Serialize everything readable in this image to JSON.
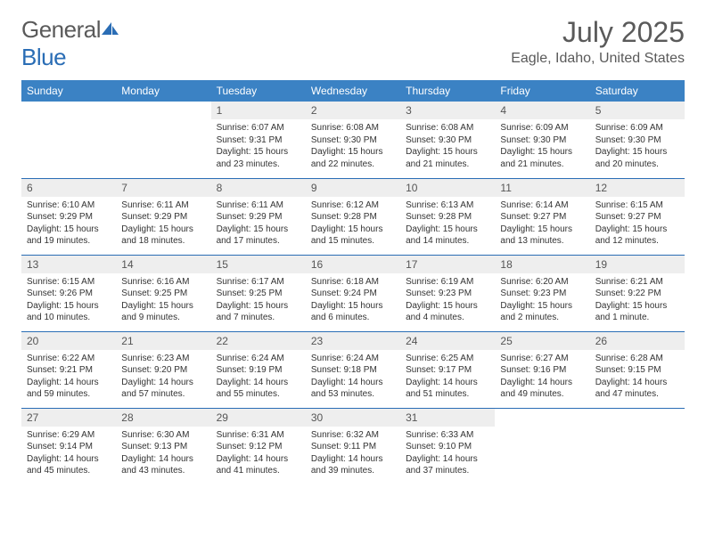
{
  "brand": {
    "word1": "General",
    "word2": "Blue"
  },
  "icon_color": "#2a6db5",
  "title": "July 2025",
  "location": "Eagle, Idaho, United States",
  "header_bg": "#3b82c4",
  "header_fg": "#ffffff",
  "daynum_bg": "#eeeeee",
  "divider_color": "#2a6db5",
  "text_color": "#333333",
  "columns": [
    "Sunday",
    "Monday",
    "Tuesday",
    "Wednesday",
    "Thursday",
    "Friday",
    "Saturday"
  ],
  "weeks": [
    [
      null,
      null,
      {
        "n": "1",
        "sr": "6:07 AM",
        "ss": "9:31 PM",
        "dl": "15 hours and 23 minutes."
      },
      {
        "n": "2",
        "sr": "6:08 AM",
        "ss": "9:30 PM",
        "dl": "15 hours and 22 minutes."
      },
      {
        "n": "3",
        "sr": "6:08 AM",
        "ss": "9:30 PM",
        "dl": "15 hours and 21 minutes."
      },
      {
        "n": "4",
        "sr": "6:09 AM",
        "ss": "9:30 PM",
        "dl": "15 hours and 21 minutes."
      },
      {
        "n": "5",
        "sr": "6:09 AM",
        "ss": "9:30 PM",
        "dl": "15 hours and 20 minutes."
      }
    ],
    [
      {
        "n": "6",
        "sr": "6:10 AM",
        "ss": "9:29 PM",
        "dl": "15 hours and 19 minutes."
      },
      {
        "n": "7",
        "sr": "6:11 AM",
        "ss": "9:29 PM",
        "dl": "15 hours and 18 minutes."
      },
      {
        "n": "8",
        "sr": "6:11 AM",
        "ss": "9:29 PM",
        "dl": "15 hours and 17 minutes."
      },
      {
        "n": "9",
        "sr": "6:12 AM",
        "ss": "9:28 PM",
        "dl": "15 hours and 15 minutes."
      },
      {
        "n": "10",
        "sr": "6:13 AM",
        "ss": "9:28 PM",
        "dl": "15 hours and 14 minutes."
      },
      {
        "n": "11",
        "sr": "6:14 AM",
        "ss": "9:27 PM",
        "dl": "15 hours and 13 minutes."
      },
      {
        "n": "12",
        "sr": "6:15 AM",
        "ss": "9:27 PM",
        "dl": "15 hours and 12 minutes."
      }
    ],
    [
      {
        "n": "13",
        "sr": "6:15 AM",
        "ss": "9:26 PM",
        "dl": "15 hours and 10 minutes."
      },
      {
        "n": "14",
        "sr": "6:16 AM",
        "ss": "9:25 PM",
        "dl": "15 hours and 9 minutes."
      },
      {
        "n": "15",
        "sr": "6:17 AM",
        "ss": "9:25 PM",
        "dl": "15 hours and 7 minutes."
      },
      {
        "n": "16",
        "sr": "6:18 AM",
        "ss": "9:24 PM",
        "dl": "15 hours and 6 minutes."
      },
      {
        "n": "17",
        "sr": "6:19 AM",
        "ss": "9:23 PM",
        "dl": "15 hours and 4 minutes."
      },
      {
        "n": "18",
        "sr": "6:20 AM",
        "ss": "9:23 PM",
        "dl": "15 hours and 2 minutes."
      },
      {
        "n": "19",
        "sr": "6:21 AM",
        "ss": "9:22 PM",
        "dl": "15 hours and 1 minute."
      }
    ],
    [
      {
        "n": "20",
        "sr": "6:22 AM",
        "ss": "9:21 PM",
        "dl": "14 hours and 59 minutes."
      },
      {
        "n": "21",
        "sr": "6:23 AM",
        "ss": "9:20 PM",
        "dl": "14 hours and 57 minutes."
      },
      {
        "n": "22",
        "sr": "6:24 AM",
        "ss": "9:19 PM",
        "dl": "14 hours and 55 minutes."
      },
      {
        "n": "23",
        "sr": "6:24 AM",
        "ss": "9:18 PM",
        "dl": "14 hours and 53 minutes."
      },
      {
        "n": "24",
        "sr": "6:25 AM",
        "ss": "9:17 PM",
        "dl": "14 hours and 51 minutes."
      },
      {
        "n": "25",
        "sr": "6:27 AM",
        "ss": "9:16 PM",
        "dl": "14 hours and 49 minutes."
      },
      {
        "n": "26",
        "sr": "6:28 AM",
        "ss": "9:15 PM",
        "dl": "14 hours and 47 minutes."
      }
    ],
    [
      {
        "n": "27",
        "sr": "6:29 AM",
        "ss": "9:14 PM",
        "dl": "14 hours and 45 minutes."
      },
      {
        "n": "28",
        "sr": "6:30 AM",
        "ss": "9:13 PM",
        "dl": "14 hours and 43 minutes."
      },
      {
        "n": "29",
        "sr": "6:31 AM",
        "ss": "9:12 PM",
        "dl": "14 hours and 41 minutes."
      },
      {
        "n": "30",
        "sr": "6:32 AM",
        "ss": "9:11 PM",
        "dl": "14 hours and 39 minutes."
      },
      {
        "n": "31",
        "sr": "6:33 AM",
        "ss": "9:10 PM",
        "dl": "14 hours and 37 minutes."
      },
      null,
      null
    ]
  ],
  "labels": {
    "sunrise": "Sunrise:",
    "sunset": "Sunset:",
    "daylight": "Daylight:"
  }
}
